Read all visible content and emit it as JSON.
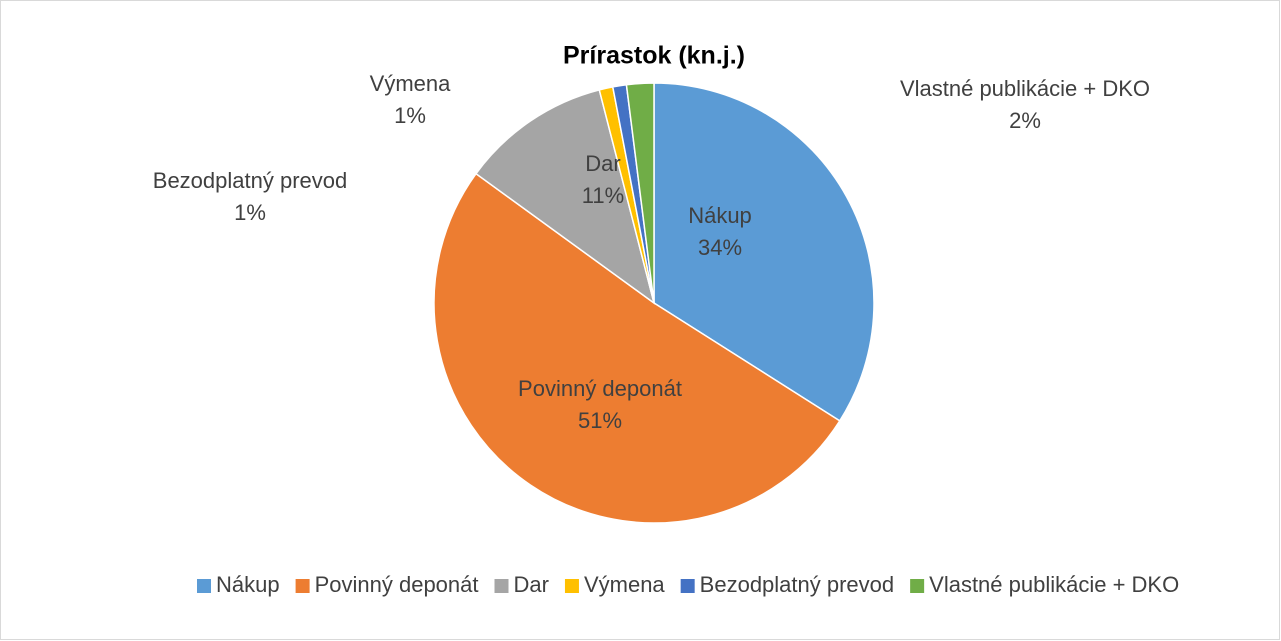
{
  "chart_data": {
    "type": "pie",
    "title": "Prírastok (kn.j.)",
    "categories": [
      "Nákup",
      "Povinný deponát",
      "Dar",
      "Výmena",
      "Bezodplatný prevod",
      "Vlastné publikácie + DKO"
    ],
    "values": [
      34,
      51,
      11,
      1,
      1,
      2
    ],
    "value_labels": [
      "34%",
      "51%",
      "11%",
      "1%",
      "1%",
      "2%"
    ],
    "colors": [
      "#5b9bd5",
      "#ed7d31",
      "#a5a5a5",
      "#ffc000",
      "#4472c4",
      "#70ad47"
    ],
    "legend": "bottom"
  }
}
